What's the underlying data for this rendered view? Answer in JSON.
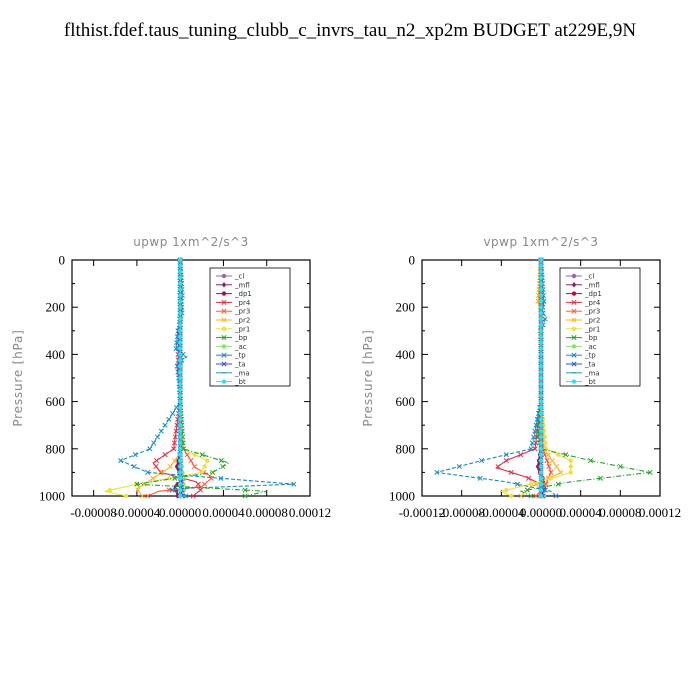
{
  "title": "flthist.fdef.taus_tuning_clubb_c_invrs_tau_n2_xp2m  BUDGET at229E,9N",
  "chart_data": [
    {
      "type": "line",
      "title": "upwp   1xm^2/s^3",
      "ylabel": "Pressure [hPa]",
      "xlim": [
        -0.0001,
        0.00012
      ],
      "ylim": [
        1000,
        0
      ],
      "x_ticks": [
        -8e-05,
        -4e-05,
        0.0,
        4e-05,
        8e-05,
        0.00012
      ],
      "x_tick_labels": [
        "-0.00008",
        "-0.00004",
        "0.00000",
        "0.00004",
        "0.00008",
        "0.00012"
      ],
      "y_ticks": [
        0,
        200,
        400,
        600,
        800,
        1000
      ],
      "y_tick_labels": [
        "0",
        "200",
        "400",
        "600",
        "800",
        "1000"
      ],
      "legend_position": "top-right",
      "series": [
        {
          "name": "_cl",
          "color": "#9a63b8",
          "p": [
            0,
            200,
            400,
            600,
            800,
            900,
            1000
          ],
          "x": [
            0,
            0,
            0,
            0,
            0,
            0,
            0
          ]
        },
        {
          "name": "_mfl",
          "color": "#80245a",
          "p": [
            0,
            200,
            400,
            600,
            800,
            900,
            1000
          ],
          "x": [
            0,
            0,
            0,
            0,
            0,
            0,
            0
          ]
        },
        {
          "name": "_dp1",
          "color": "#b0123e",
          "p": [
            0,
            200,
            400,
            600,
            800,
            880,
            930,
            960,
            1000
          ],
          "x": [
            0,
            0,
            0,
            0,
            1e-06,
            -3e-06,
            3e-06,
            -5e-06,
            -2e-06
          ]
        },
        {
          "name": "_pr4",
          "color": "#e0304a",
          "p": [
            0,
            200,
            400,
            600,
            800,
            860,
            900,
            940,
            970,
            1000
          ],
          "x": [
            0,
            0,
            -2e-06,
            0,
            -6e-06,
            -2.5e-05,
            -1.8e-05,
            1.5e-05,
            2e-05,
            1.2e-05
          ]
        },
        {
          "name": "_pr3",
          "color": "#ff5a3c",
          "p": [
            0,
            200,
            400,
            600,
            800,
            880,
            920,
            960,
            980,
            1000
          ],
          "x": [
            0,
            0,
            0,
            0,
            3e-06,
            1.4e-05,
            3e-05,
            2e-05,
            -2e-05,
            -3e-05
          ]
        },
        {
          "name": "_pr2",
          "color": "#ffb020",
          "p": [
            0,
            200,
            400,
            600,
            800,
            880,
            940,
            970,
            1000
          ],
          "x": [
            0,
            0,
            0,
            0,
            3e-06,
            -1e-05,
            -3e-05,
            -4e-05,
            -3.5e-05
          ]
        },
        {
          "name": "_pr1",
          "color": "#f0e040",
          "p": [
            0,
            200,
            400,
            600,
            800,
            850,
            900,
            950,
            980,
            1000
          ],
          "x": [
            0,
            0,
            0,
            0,
            2e-06,
            2.5e-05,
            2e-05,
            -4e-05,
            -7e-05,
            -5e-05
          ]
        },
        {
          "name": "_bp",
          "color": "#2ca02c",
          "p": [
            0,
            200,
            400,
            600,
            800,
            860,
            900,
            950,
            980,
            1000
          ],
          "x": [
            0,
            0,
            0,
            0,
            3e-06,
            4.5e-05,
            3e-05,
            -4e-05,
            8e-05,
            6e-05
          ]
        },
        {
          "name": "_ac",
          "color": "#8ce070",
          "p": [
            0,
            200,
            400,
            600,
            800,
            900,
            1000
          ],
          "x": [
            0,
            0,
            0,
            0,
            0,
            2e-06,
            4e-06
          ]
        },
        {
          "name": "_tp",
          "color": "#1f8ac0",
          "p": [
            0,
            150,
            180,
            220,
            300,
            380,
            410,
            440,
            520,
            600,
            800,
            850,
            900,
            950,
            970,
            1000
          ],
          "x": [
            0,
            2e-06,
            1e-06,
            2e-06,
            -2e-06,
            -4e-06,
            6e-06,
            -3e-06,
            -1e-06,
            0,
            -2.8e-05,
            -5.5e-05,
            -3e-05,
            0.000105,
            -1e-05,
            5e-06
          ]
        },
        {
          "name": "_ta",
          "color": "#3050d0",
          "p": [
            0,
            200,
            400,
            600,
            800,
            900,
            1000
          ],
          "x": [
            0,
            0,
            0,
            0,
            0,
            0,
            2e-06
          ]
        },
        {
          "name": "_ma",
          "color": "#2aa0a0",
          "p": [
            0,
            200,
            400,
            600,
            800,
            900,
            1000
          ],
          "x": [
            0,
            0,
            0,
            0,
            0,
            0,
            0
          ]
        },
        {
          "name": "_bt",
          "color": "#30e0f0",
          "p": [
            0,
            200,
            400,
            600,
            800,
            900,
            1000
          ],
          "x": [
            0,
            0,
            0,
            0,
            0,
            0,
            0
          ]
        }
      ]
    },
    {
      "type": "line",
      "title": "vpwp   1xm^2/s^3",
      "ylabel": "Pressure [hPa]",
      "xlim": [
        -0.00012,
        0.00012
      ],
      "ylim": [
        1000,
        0
      ],
      "x_ticks": [
        -0.00012,
        -8e-05,
        -4e-05,
        0.0,
        4e-05,
        8e-05,
        0.00012
      ],
      "x_tick_labels": [
        "-0.00012",
        "-0.00008",
        "-0.00004",
        "0.00000",
        "0.00004",
        "0.00008",
        "0.00012"
      ],
      "y_ticks": [
        0,
        200,
        400,
        600,
        800,
        1000
      ],
      "y_tick_labels": [
        "0",
        "200",
        "400",
        "600",
        "800",
        "1000"
      ],
      "legend_position": "top-right",
      "series": [
        {
          "name": "_cl",
          "color": "#9a63b8",
          "p": [
            0,
            200,
            400,
            600,
            800,
            900,
            1000
          ],
          "x": [
            0,
            0,
            0,
            0,
            0,
            0,
            0
          ]
        },
        {
          "name": "_mfl",
          "color": "#80245a",
          "p": [
            0,
            200,
            400,
            600,
            800,
            900,
            1000
          ],
          "x": [
            0,
            0,
            0,
            0,
            0,
            0,
            0
          ]
        },
        {
          "name": "_dp1",
          "color": "#b0123e",
          "p": [
            0,
            200,
            400,
            600,
            800,
            880,
            940,
            1000
          ],
          "x": [
            0,
            0,
            0,
            0,
            0,
            -3e-06,
            3e-06,
            0
          ]
        },
        {
          "name": "_pr4",
          "color": "#e0304a",
          "p": [
            0,
            200,
            400,
            600,
            800,
            850,
            880,
            920,
            960,
            1000
          ],
          "x": [
            0,
            0,
            0,
            0,
            -6e-06,
            -3.5e-05,
            -4.5e-05,
            -1.5e-05,
            5e-06,
            0
          ]
        },
        {
          "name": "_pr3",
          "color": "#ff5a3c",
          "p": [
            0,
            200,
            400,
            600,
            800,
            900,
            950,
            1000
          ],
          "x": [
            0,
            0,
            0,
            0,
            2e-06,
            1e-05,
            5e-06,
            -5e-06
          ]
        },
        {
          "name": "_pr2",
          "color": "#ffb020",
          "p": [
            0,
            180,
            220,
            300,
            400,
            600,
            800,
            900,
            960,
            1000
          ],
          "x": [
            0,
            -3e-06,
            2e-06,
            -1e-06,
            0,
            0,
            3e-06,
            2e-05,
            -1e-05,
            -2e-05
          ]
        },
        {
          "name": "_pr1",
          "color": "#f0e040",
          "p": [
            0,
            200,
            400,
            600,
            800,
            850,
            900,
            950,
            980,
            1000
          ],
          "x": [
            0,
            0,
            0,
            0,
            5e-06,
            3e-05,
            3e-05,
            -1e-05,
            -4e-05,
            -3e-05
          ]
        },
        {
          "name": "_bp",
          "color": "#2ca02c",
          "p": [
            0,
            200,
            400,
            600,
            750,
            800,
            850,
            900,
            940,
            980,
            1000
          ],
          "x": [
            0,
            0,
            0,
            0,
            -3e-06,
            0,
            5e-05,
            0.00011,
            3e-05,
            -2e-05,
            -1e-05
          ]
        },
        {
          "name": "_ac",
          "color": "#8ce070",
          "p": [
            0,
            200,
            400,
            600,
            800,
            900,
            1000
          ],
          "x": [
            0,
            0,
            0,
            0,
            0,
            0,
            3e-06
          ]
        },
        {
          "name": "_tp",
          "color": "#1f8ac0",
          "p": [
            0,
            180,
            220,
            240,
            300,
            400,
            600,
            800,
            850,
            900,
            940,
            980,
            1000
          ],
          "x": [
            0,
            3e-06,
            1e-06,
            5e-06,
            0,
            0,
            0,
            -1e-05,
            -6e-05,
            -0.000105,
            -3.5e-05,
            1e-05,
            1.5e-05
          ]
        },
        {
          "name": "_ta",
          "color": "#3050d0",
          "p": [
            0,
            200,
            400,
            600,
            800,
            900,
            1000
          ],
          "x": [
            0,
            0,
            0,
            0,
            0,
            0,
            2e-06
          ]
        },
        {
          "name": "_ma",
          "color": "#2aa0a0",
          "p": [
            0,
            200,
            400,
            600,
            800,
            900,
            1000
          ],
          "x": [
            0,
            0,
            0,
            0,
            0,
            0,
            0
          ]
        },
        {
          "name": "_bt",
          "color": "#30e0f0",
          "p": [
            0,
            200,
            400,
            600,
            800,
            900,
            1000
          ],
          "x": [
            0,
            0,
            0,
            0,
            0,
            0,
            0
          ]
        }
      ]
    }
  ]
}
